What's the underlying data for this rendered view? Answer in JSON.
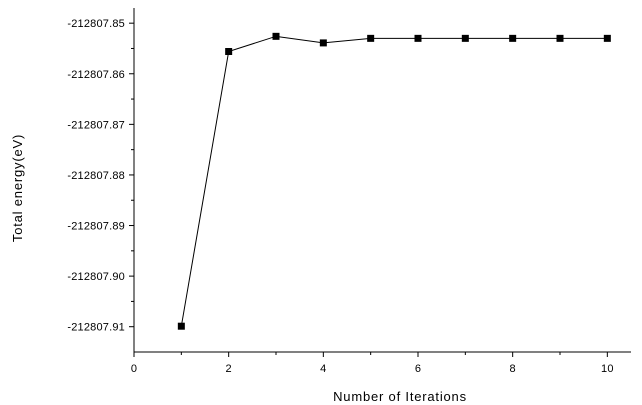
{
  "chart_data": {
    "type": "line",
    "xlabel": "Number of Iterations",
    "ylabel": "Total energy(eV)",
    "xlim": [
      0,
      10.5
    ],
    "ylim": [
      -212807.915,
      -212807.847
    ],
    "x_ticks": [
      0,
      2,
      4,
      6,
      8,
      10
    ],
    "x_tick_labels": [
      "0",
      "2",
      "4",
      "6",
      "8",
      "10"
    ],
    "y_ticks": [
      -212807.85,
      -212807.86,
      -212807.87,
      -212807.88,
      -212807.89,
      -212807.9,
      -212807.91
    ],
    "y_tick_labels": [
      "-212807.85",
      "-212807.86",
      "-212807.87",
      "-212807.88",
      "-212807.89",
      "-212807.90",
      "-212807.91"
    ],
    "grid": false,
    "series": [
      {
        "color": "#000000",
        "marker": "square",
        "x": [
          1,
          2,
          3,
          4,
          5,
          6,
          7,
          8,
          9,
          10
        ],
        "y": [
          -212807.9099,
          -212807.8556,
          -212807.8526,
          -212807.8539,
          -212807.853,
          -212807.853,
          -212807.853,
          -212807.853,
          -212807.853,
          -212807.853
        ]
      }
    ]
  }
}
